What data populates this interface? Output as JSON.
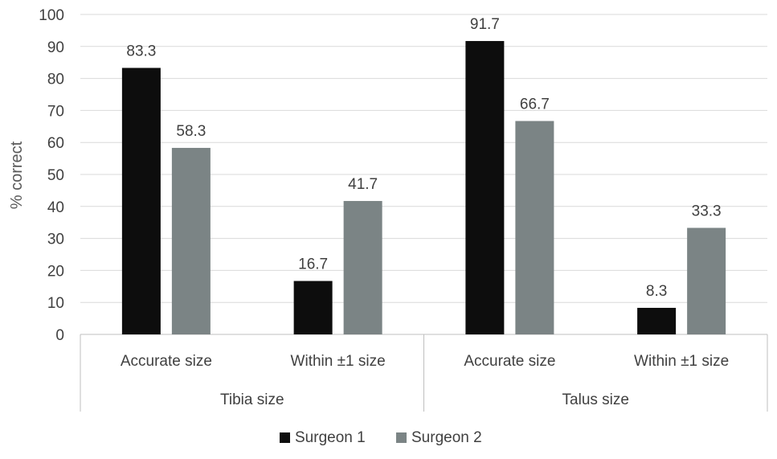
{
  "chart_data": {
    "type": "bar",
    "ylabel": "% correct",
    "ylim": [
      0,
      100
    ],
    "ytick_step": 10,
    "grid": true,
    "legend_position": "bottom",
    "groups": [
      {
        "label": "Tibia size",
        "categories": [
          "Accurate size",
          "Within ±1 size"
        ]
      },
      {
        "label": "Talus size",
        "categories": [
          "Accurate size",
          "Within ±1 size"
        ]
      }
    ],
    "series": [
      {
        "name": "Surgeon 1",
        "color": "#0d0d0d",
        "values": [
          83.3,
          16.7,
          91.7,
          8.3
        ]
      },
      {
        "name": "Surgeon 2",
        "color": "#7b8485",
        "values": [
          58.3,
          41.7,
          66.7,
          33.3
        ]
      }
    ]
  }
}
